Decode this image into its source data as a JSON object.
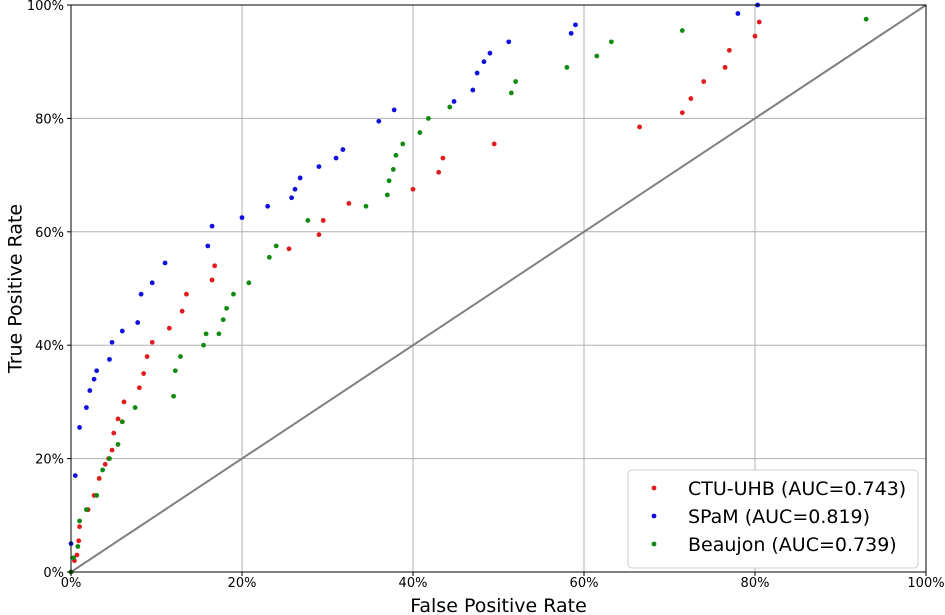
{
  "chart_data": {
    "type": "scatter",
    "xlabel": "False Positive Rate",
    "ylabel": "True Positive Rate",
    "xlim": [
      0,
      1
    ],
    "ylim": [
      0,
      1
    ],
    "x_ticks": [
      "0%",
      "20%",
      "40%",
      "60%",
      "80%",
      "100%"
    ],
    "y_ticks": [
      "0%",
      "20%",
      "40%",
      "60%",
      "80%",
      "100%"
    ],
    "grid": true,
    "legend_position": "bottom-right",
    "reference_line": {
      "from": [
        0,
        0
      ],
      "to": [
        1,
        1
      ],
      "color": "#808080"
    },
    "series": [
      {
        "name": "CTU-UHB (AUC=0.743)",
        "color": "#e31a1c",
        "points": [
          [
            0.0,
            0.0
          ],
          [
            0.004,
            0.02
          ],
          [
            0.007,
            0.03
          ],
          [
            0.009,
            0.055
          ],
          [
            0.01,
            0.08
          ],
          [
            0.02,
            0.11
          ],
          [
            0.027,
            0.135
          ],
          [
            0.033,
            0.165
          ],
          [
            0.04,
            0.19
          ],
          [
            0.044,
            0.2
          ],
          [
            0.048,
            0.215
          ],
          [
            0.05,
            0.245
          ],
          [
            0.055,
            0.27
          ],
          [
            0.06,
            0.265
          ],
          [
            0.062,
            0.3
          ],
          [
            0.08,
            0.325
          ],
          [
            0.085,
            0.35
          ],
          [
            0.089,
            0.38
          ],
          [
            0.095,
            0.405
          ],
          [
            0.115,
            0.43
          ],
          [
            0.13,
            0.46
          ],
          [
            0.135,
            0.49
          ],
          [
            0.165,
            0.515
          ],
          [
            0.168,
            0.54
          ],
          [
            0.255,
            0.57
          ],
          [
            0.29,
            0.595
          ],
          [
            0.295,
            0.62
          ],
          [
            0.325,
            0.65
          ],
          [
            0.4,
            0.675
          ],
          [
            0.43,
            0.705
          ],
          [
            0.435,
            0.73
          ],
          [
            0.495,
            0.755
          ],
          [
            0.665,
            0.785
          ],
          [
            0.715,
            0.81
          ],
          [
            0.725,
            0.835
          ],
          [
            0.74,
            0.865
          ],
          [
            0.765,
            0.89
          ],
          [
            0.77,
            0.92
          ],
          [
            0.8,
            0.945
          ],
          [
            0.805,
            0.97
          ]
        ]
      },
      {
        "name": "SPaM (AUC=0.819)",
        "color": "#1010e0",
        "points": [
          [
            0.0,
            0.05
          ],
          [
            0.005,
            0.17
          ],
          [
            0.01,
            0.255
          ],
          [
            0.018,
            0.29
          ],
          [
            0.022,
            0.32
          ],
          [
            0.027,
            0.34
          ],
          [
            0.03,
            0.355
          ],
          [
            0.045,
            0.375
          ],
          [
            0.048,
            0.405
          ],
          [
            0.06,
            0.425
          ],
          [
            0.078,
            0.44
          ],
          [
            0.082,
            0.49
          ],
          [
            0.095,
            0.51
          ],
          [
            0.11,
            0.545
          ],
          [
            0.16,
            0.575
          ],
          [
            0.165,
            0.61
          ],
          [
            0.2,
            0.625
          ],
          [
            0.23,
            0.645
          ],
          [
            0.258,
            0.66
          ],
          [
            0.262,
            0.675
          ],
          [
            0.268,
            0.695
          ],
          [
            0.29,
            0.715
          ],
          [
            0.31,
            0.73
          ],
          [
            0.318,
            0.745
          ],
          [
            0.36,
            0.795
          ],
          [
            0.378,
            0.815
          ],
          [
            0.448,
            0.83
          ],
          [
            0.47,
            0.85
          ],
          [
            0.475,
            0.88
          ],
          [
            0.483,
            0.9
          ],
          [
            0.49,
            0.915
          ],
          [
            0.512,
            0.935
          ],
          [
            0.585,
            0.95
          ],
          [
            0.59,
            0.965
          ],
          [
            0.78,
            0.985
          ],
          [
            0.803,
            1.0
          ]
        ]
      },
      {
        "name": "Beaujon (AUC=0.739)",
        "color": "#108a10",
        "points": [
          [
            0.0,
            0.0
          ],
          [
            0.003,
            0.025
          ],
          [
            0.008,
            0.045
          ],
          [
            0.01,
            0.09
          ],
          [
            0.018,
            0.11
          ],
          [
            0.03,
            0.135
          ],
          [
            0.037,
            0.18
          ],
          [
            0.045,
            0.2
          ],
          [
            0.055,
            0.225
          ],
          [
            0.06,
            0.265
          ],
          [
            0.075,
            0.29
          ],
          [
            0.12,
            0.31
          ],
          [
            0.122,
            0.355
          ],
          [
            0.128,
            0.38
          ],
          [
            0.155,
            0.4
          ],
          [
            0.158,
            0.42
          ],
          [
            0.173,
            0.42
          ],
          [
            0.178,
            0.445
          ],
          [
            0.182,
            0.465
          ],
          [
            0.19,
            0.49
          ],
          [
            0.208,
            0.51
          ],
          [
            0.232,
            0.555
          ],
          [
            0.24,
            0.575
          ],
          [
            0.277,
            0.62
          ],
          [
            0.345,
            0.645
          ],
          [
            0.37,
            0.665
          ],
          [
            0.372,
            0.69
          ],
          [
            0.377,
            0.71
          ],
          [
            0.38,
            0.735
          ],
          [
            0.388,
            0.755
          ],
          [
            0.408,
            0.775
          ],
          [
            0.418,
            0.8
          ],
          [
            0.443,
            0.82
          ],
          [
            0.515,
            0.845
          ],
          [
            0.52,
            0.865
          ],
          [
            0.58,
            0.89
          ],
          [
            0.615,
            0.91
          ],
          [
            0.632,
            0.935
          ],
          [
            0.715,
            0.955
          ],
          [
            0.93,
            0.975
          ]
        ]
      }
    ]
  }
}
